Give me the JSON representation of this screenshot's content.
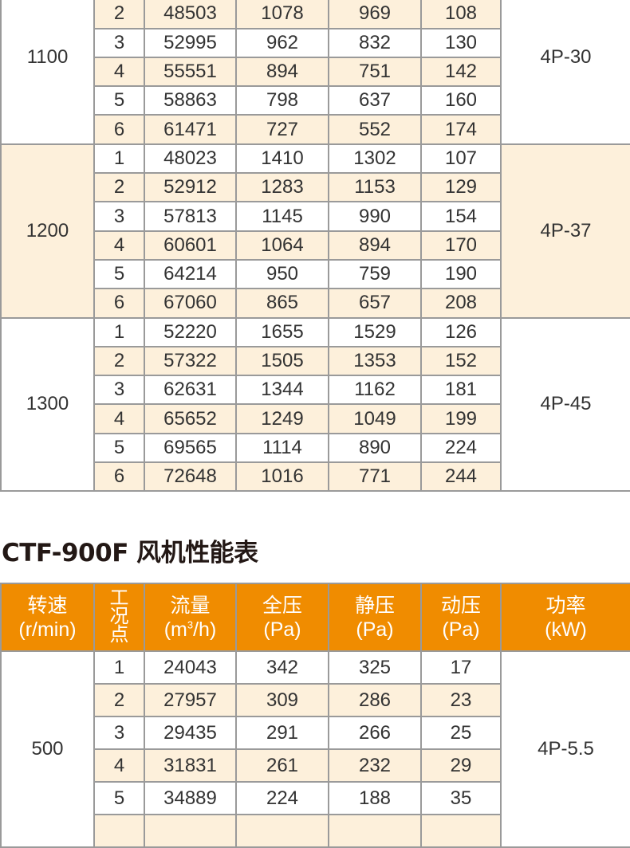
{
  "table1": {
    "sections": [
      {
        "speed": "1100",
        "power": "4P-30",
        "shaded": false,
        "rows": [
          [
            "",
            "",
            "",
            "",
            ""
          ],
          [
            "2",
            "48503",
            "1078",
            "969",
            "108"
          ],
          [
            "3",
            "52995",
            "962",
            "832",
            "130"
          ],
          [
            "4",
            "55551",
            "894",
            "751",
            "142"
          ],
          [
            "5",
            "58863",
            "798",
            "637",
            "160"
          ],
          [
            "6",
            "61471",
            "727",
            "552",
            "174"
          ]
        ]
      },
      {
        "speed": "1200",
        "power": "4P-37",
        "shaded": true,
        "rows": [
          [
            "1",
            "48023",
            "1410",
            "1302",
            "107"
          ],
          [
            "2",
            "52912",
            "1283",
            "1153",
            "129"
          ],
          [
            "3",
            "57813",
            "1145",
            "990",
            "154"
          ],
          [
            "4",
            "60601",
            "1064",
            "894",
            "170"
          ],
          [
            "5",
            "64214",
            "950",
            "759",
            "190"
          ],
          [
            "6",
            "67060",
            "865",
            "657",
            "208"
          ]
        ]
      },
      {
        "speed": "1300",
        "power": "4P-45",
        "shaded": false,
        "rows": [
          [
            "1",
            "52220",
            "1655",
            "1529",
            "126"
          ],
          [
            "2",
            "57322",
            "1505",
            "1353",
            "152"
          ],
          [
            "3",
            "62631",
            "1344",
            "1162",
            "181"
          ],
          [
            "4",
            "65652",
            "1249",
            "1049",
            "199"
          ],
          [
            "5",
            "69565",
            "1114",
            "890",
            "224"
          ],
          [
            "6",
            "72648",
            "1016",
            "771",
            "244"
          ]
        ]
      }
    ]
  },
  "title": "CTF-900F 风机性能表",
  "table2": {
    "headers": {
      "speed": [
        "转速",
        "(r/min)"
      ],
      "condition": "工况点",
      "flow": [
        "流量",
        "(m",
        "3",
        "/h)"
      ],
      "total": [
        "全压",
        "(Pa)"
      ],
      "static": [
        "静压",
        "(Pa)"
      ],
      "dynamic": [
        "动压",
        "(Pa)"
      ],
      "power": [
        "功率",
        "(kW)"
      ]
    },
    "sections": [
      {
        "speed": "500",
        "power": "4P-5.5",
        "shaded": false,
        "rows": [
          [
            "1",
            "24043",
            "342",
            "325",
            "17"
          ],
          [
            "2",
            "27957",
            "309",
            "286",
            "23"
          ],
          [
            "3",
            "29435",
            "291",
            "266",
            "25"
          ],
          [
            "4",
            "31831",
            "261",
            "232",
            "29"
          ],
          [
            "5",
            "34889",
            "224",
            "188",
            "35"
          ],
          [
            "",
            "",
            "",
            "",
            ""
          ]
        ]
      }
    ]
  },
  "colors": {
    "header": "#f08c00",
    "shade": "#fdf0db",
    "border": "#9a9a9a"
  }
}
